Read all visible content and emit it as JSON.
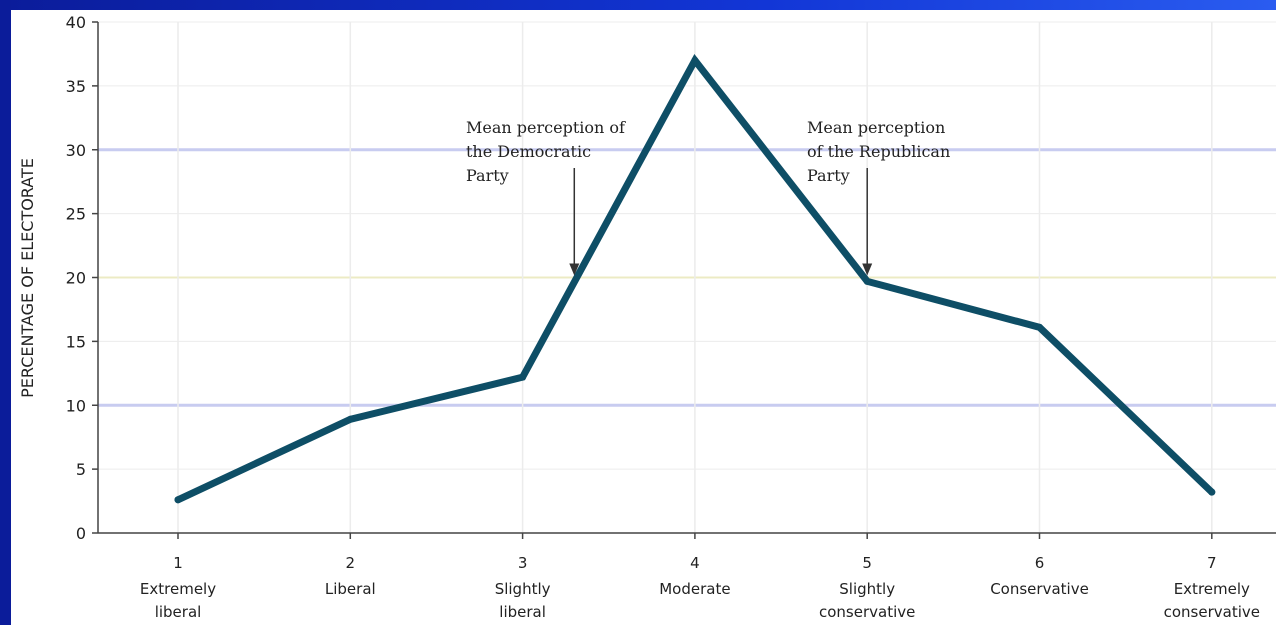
{
  "colors": {
    "line": "#0e4e66",
    "grid_blue": "#c8ccf0",
    "grid_yellow": "#ecebc4",
    "grid_vertical": "#ececec",
    "frame": "#0b1c9a"
  },
  "chart_data": {
    "type": "line",
    "title": "",
    "xlabel": "",
    "ylabel": "PERCENTAGE OF ELECTORATE",
    "ylim": [
      0,
      40
    ],
    "yticks": [
      0,
      5,
      10,
      15,
      20,
      25,
      30,
      35,
      40
    ],
    "x": [
      1,
      2,
      3,
      4,
      5,
      6,
      7
    ],
    "categories": [
      {
        "number": "1",
        "label_lines": [
          "Extremely",
          "liberal"
        ]
      },
      {
        "number": "2",
        "label_lines": [
          "Liberal"
        ]
      },
      {
        "number": "3",
        "label_lines": [
          "Slightly",
          "liberal"
        ]
      },
      {
        "number": "4",
        "label_lines": [
          "Moderate"
        ]
      },
      {
        "number": "5",
        "label_lines": [
          "Slightly",
          "conservative"
        ]
      },
      {
        "number": "6",
        "label_lines": [
          "Conservative"
        ]
      },
      {
        "number": "7",
        "label_lines": [
          "Extremely",
          "conservative"
        ]
      }
    ],
    "series": [
      {
        "values": [
          2.6,
          8.9,
          12.2,
          37,
          19.7,
          16.1,
          3.2
        ]
      }
    ],
    "annotations": [
      {
        "lines": [
          "Mean perception of",
          "the Democratic",
          "Party"
        ],
        "x": 3.3,
        "y": 20
      },
      {
        "lines": [
          "Mean perception",
          "of the Republican",
          "Party"
        ],
        "x": 5.0,
        "y": 20
      }
    ],
    "grid": true,
    "legend": "none"
  }
}
